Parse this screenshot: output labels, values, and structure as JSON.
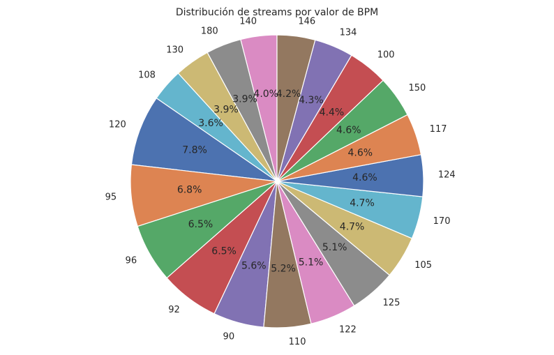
{
  "chart_data": {
    "type": "pie",
    "title": "Distribución de streams por valor de BPM",
    "start_angle_deg": 90,
    "direction": "counterclockwise",
    "slices": [
      {
        "label": "140",
        "pct": 4.0,
        "pct_text": "4.0%",
        "color": "#da8bc3"
      },
      {
        "label": "180",
        "pct": 3.9,
        "pct_text": "3.9%",
        "color": "#8c8c8c"
      },
      {
        "label": "130",
        "pct": 3.9,
        "pct_text": "3.9%",
        "color": "#ccb974"
      },
      {
        "label": "108",
        "pct": 3.6,
        "pct_text": "3.6%",
        "color": "#64b5cd"
      },
      {
        "label": "120",
        "pct": 7.8,
        "pct_text": "7.8%",
        "color": "#4c72b0"
      },
      {
        "label": "95",
        "pct": 6.8,
        "pct_text": "6.8%",
        "color": "#dd8452"
      },
      {
        "label": "96",
        "pct": 6.5,
        "pct_text": "6.5%",
        "color": "#55a868"
      },
      {
        "label": "92",
        "pct": 6.5,
        "pct_text": "6.5%",
        "color": "#c44e52"
      },
      {
        "label": "90",
        "pct": 5.6,
        "pct_text": "5.6%",
        "color": "#8172b3"
      },
      {
        "label": "110",
        "pct": 5.2,
        "pct_text": "5.2%",
        "color": "#937860"
      },
      {
        "label": "122",
        "pct": 5.1,
        "pct_text": "5.1%",
        "color": "#da8bc3"
      },
      {
        "label": "125",
        "pct": 5.1,
        "pct_text": "5.1%",
        "color": "#8c8c8c"
      },
      {
        "label": "105",
        "pct": 4.7,
        "pct_text": "4.7%",
        "color": "#ccb974"
      },
      {
        "label": "170",
        "pct": 4.7,
        "pct_text": "4.7%",
        "color": "#64b5cd"
      },
      {
        "label": "124",
        "pct": 4.6,
        "pct_text": "4.6%",
        "color": "#4c72b0"
      },
      {
        "label": "117",
        "pct": 4.6,
        "pct_text": "4.6%",
        "color": "#dd8452"
      },
      {
        "label": "150",
        "pct": 4.6,
        "pct_text": "4.6%",
        "color": "#55a868"
      },
      {
        "label": "100",
        "pct": 4.4,
        "pct_text": "4.4%",
        "color": "#c44e52"
      },
      {
        "label": "134",
        "pct": 4.3,
        "pct_text": "4.3%",
        "color": "#8172b3"
      },
      {
        "label": "146",
        "pct": 4.2,
        "pct_text": "4.2%",
        "color": "#937860"
      }
    ]
  }
}
